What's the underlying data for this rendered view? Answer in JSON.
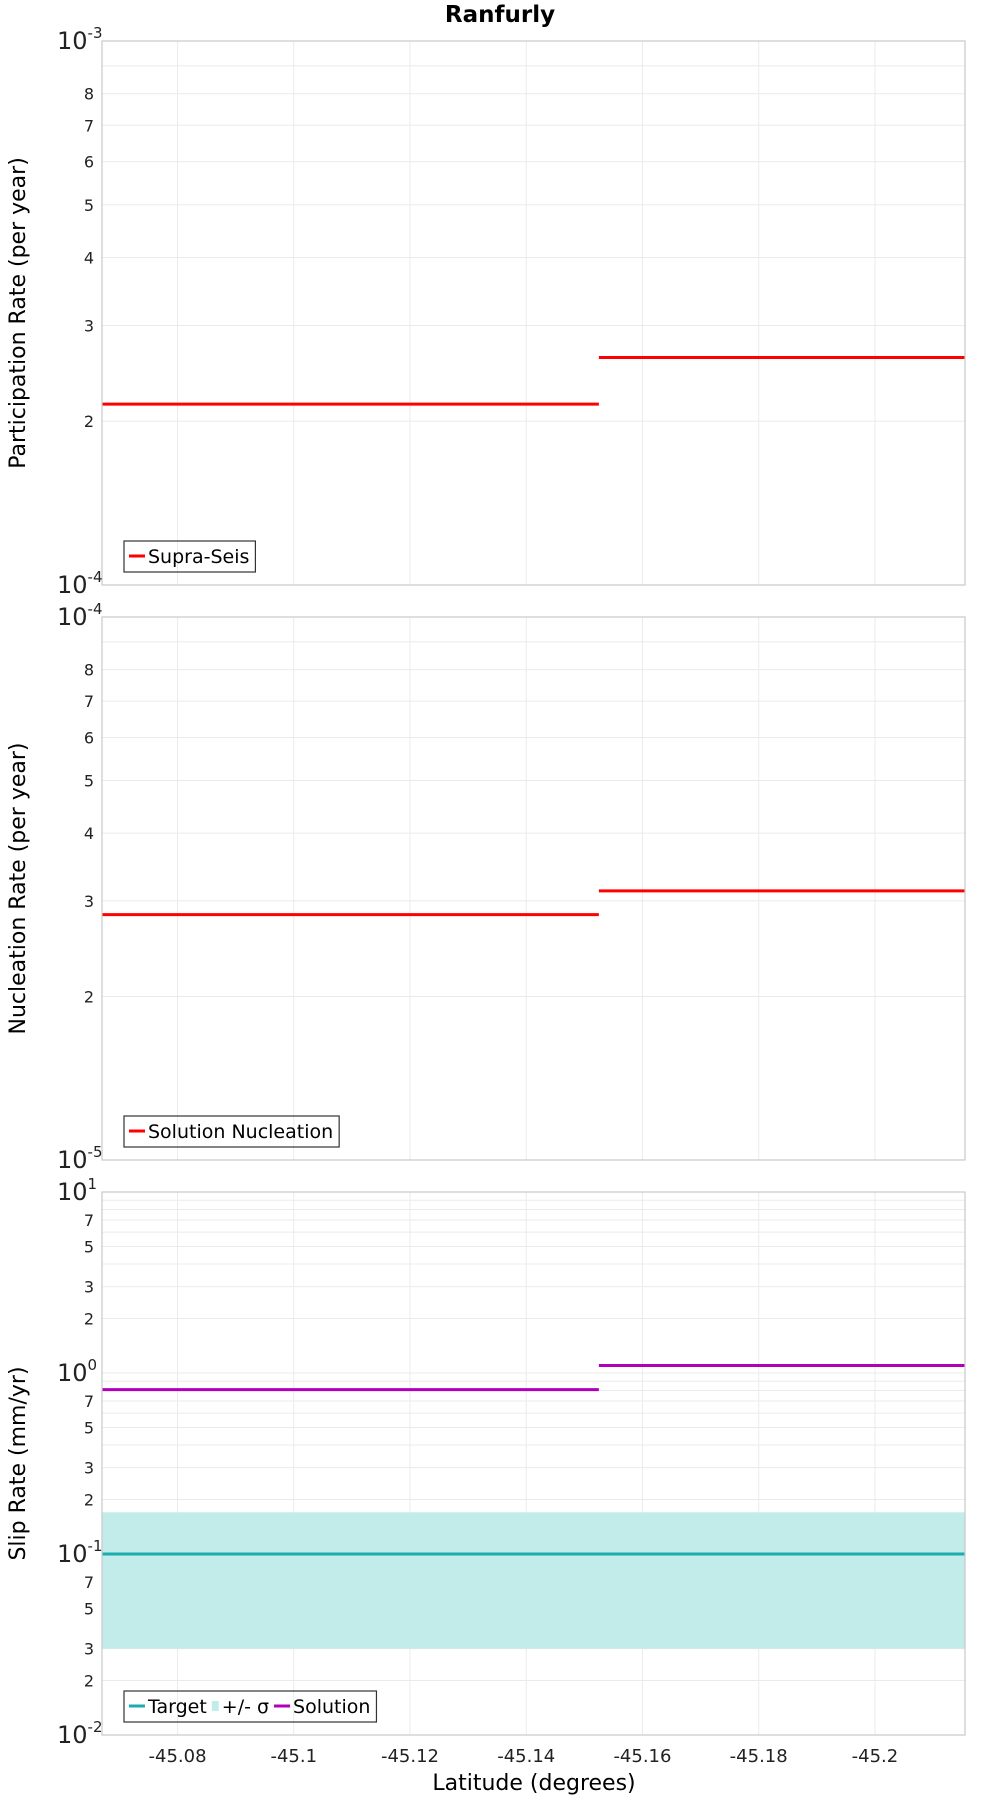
{
  "title": "Ranfurly",
  "xlabel": "Latitude (degrees)",
  "colors": {
    "red": "#ff0000",
    "cyan": "#1aadad",
    "band": "#c2ecea",
    "magenta": "#b000b8"
  },
  "chart_data": [
    {
      "type": "line",
      "ylabel": "Participation Rate (per year)",
      "yscale": "log",
      "ylim": [
        0.0001,
        0.001
      ],
      "xlim": [
        -45.067,
        -45.2155
      ],
      "xticks": [
        "-45.08",
        "-45.1",
        "-45.12",
        "-45.14",
        "-45.16",
        "-45.18",
        "-45.2"
      ],
      "ytick_labels": [
        {
          "base": "10",
          "exp": "-4"
        },
        {
          "base": "2"
        },
        {
          "base": "3"
        },
        {
          "base": "4"
        },
        {
          "base": "5"
        },
        {
          "base": "6"
        },
        {
          "base": "7"
        },
        {
          "base": "8"
        },
        {
          "base": "10",
          "exp": "-3"
        }
      ],
      "legend": [
        {
          "label": "Supra-Seis",
          "kind": "line",
          "color": "#ff0000"
        }
      ],
      "series": [
        {
          "name": "Supra-Seis",
          "color": "#ff0000",
          "segments": [
            {
              "x": [
                -45.067,
                -45.1525
              ],
              "y": 0.000215
            },
            {
              "x": [
                -45.1525,
                -45.2155
              ],
              "y": 0.000262
            }
          ]
        }
      ]
    },
    {
      "type": "line",
      "ylabel": "Nucleation Rate (per year)",
      "yscale": "log",
      "ylim": [
        1e-05,
        0.0001
      ],
      "xlim": [
        -45.067,
        -45.2155
      ],
      "xticks": [
        "-45.08",
        "-45.1",
        "-45.12",
        "-45.14",
        "-45.16",
        "-45.18",
        "-45.2"
      ],
      "ytick_labels": [
        {
          "base": "10",
          "exp": "-5"
        },
        {
          "base": "2"
        },
        {
          "base": "3"
        },
        {
          "base": "4"
        },
        {
          "base": "5"
        },
        {
          "base": "6"
        },
        {
          "base": "7"
        },
        {
          "base": "8"
        },
        {
          "base": "10",
          "exp": "-4"
        }
      ],
      "legend": [
        {
          "label": "Solution Nucleation",
          "kind": "line",
          "color": "#ff0000"
        }
      ],
      "series": [
        {
          "name": "Solution Nucleation",
          "color": "#ff0000",
          "segments": [
            {
              "x": [
                -45.067,
                -45.1525
              ],
              "y": 2.83e-05
            },
            {
              "x": [
                -45.1525,
                -45.2155
              ],
              "y": 3.13e-05
            }
          ]
        }
      ]
    },
    {
      "type": "line",
      "ylabel": "Slip Rate (mm/yr)",
      "yscale": "log",
      "ylim": [
        0.01,
        10
      ],
      "xlim": [
        -45.067,
        -45.2155
      ],
      "xticks": [
        "-45.08",
        "-45.1",
        "-45.12",
        "-45.14",
        "-45.16",
        "-45.18",
        "-45.2"
      ],
      "ytick_labels": [
        {
          "base": "10",
          "exp": "-2"
        },
        {
          "base": "2"
        },
        {
          "base": "3"
        },
        {
          "base": "5"
        },
        {
          "base": "7"
        },
        {
          "base": "10",
          "exp": "-1"
        },
        {
          "base": "2"
        },
        {
          "base": "3"
        },
        {
          "base": "5"
        },
        {
          "base": "7"
        },
        {
          "base": "10",
          "exp": "0"
        },
        {
          "base": "2"
        },
        {
          "base": "3"
        },
        {
          "base": "5"
        },
        {
          "base": "7"
        },
        {
          "base": "10",
          "exp": "1"
        }
      ],
      "legend": [
        {
          "label": "Target",
          "kind": "line",
          "color": "#1aadad"
        },
        {
          "label": "+/- σ",
          "kind": "band",
          "color": "#c2ecea"
        },
        {
          "label": "Solution",
          "kind": "line",
          "color": "#b000b8"
        }
      ],
      "band": {
        "name": "+/- σ",
        "color": "#c2ecea",
        "x": [
          -45.067,
          -45.2155
        ],
        "y": [
          0.03,
          0.17
        ]
      },
      "series": [
        {
          "name": "Target",
          "color": "#1aadad",
          "segments": [
            {
              "x": [
                -45.067,
                -45.2155
              ],
              "y": 0.1
            }
          ]
        },
        {
          "name": "Solution",
          "color": "#b000b8",
          "segments": [
            {
              "x": [
                -45.067,
                -45.1525
              ],
              "y": 0.81
            },
            {
              "x": [
                -45.1525,
                -45.2155
              ],
              "y": 1.1
            }
          ]
        }
      ]
    }
  ]
}
